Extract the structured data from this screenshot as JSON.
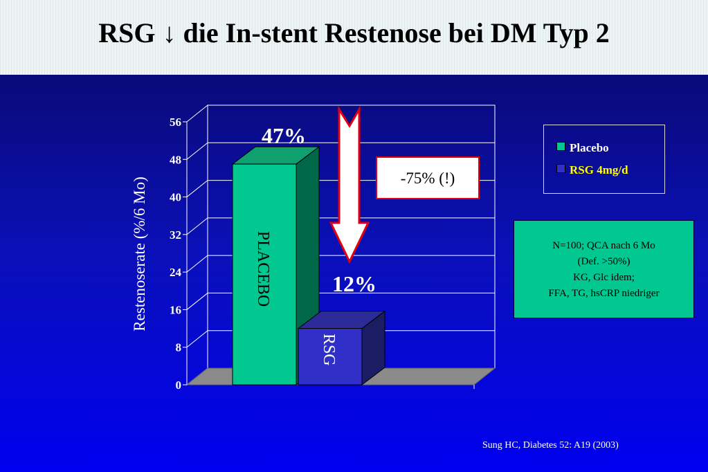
{
  "title": "RSG ↓ die In-stent Restenose bei DM Typ 2",
  "chart_data": {
    "type": "bar",
    "categories": [
      "PLACEBO",
      "RSG"
    ],
    "values": [
      47,
      12
    ],
    "value_labels": [
      "47%",
      "12%"
    ],
    "ylabel": "Restenoserate (%/6 Mo)",
    "ylim": [
      0,
      56
    ],
    "yticks": [
      0,
      8,
      16,
      24,
      32,
      40,
      48,
      56
    ],
    "grid": true,
    "colors": [
      "#00c890",
      "#3030c8"
    ],
    "annotation": "-75% (!)",
    "legend": {
      "position": "top-right",
      "entries": [
        {
          "label": "Placebo",
          "color": "#00c890",
          "text_color": "#ffffff"
        },
        {
          "label": "RSG 4mg/d",
          "color": "#3030c8",
          "text_color": "#ffff00"
        }
      ]
    }
  },
  "info_box": {
    "lines": [
      "N=100; QCA nach 6 Mo",
      "(Def. >50%)",
      "KG, Glc idem;",
      "FFA, TG, hsCRP niedriger"
    ]
  },
  "source": "Sung HC, Diabetes 52: A19 (2003)"
}
